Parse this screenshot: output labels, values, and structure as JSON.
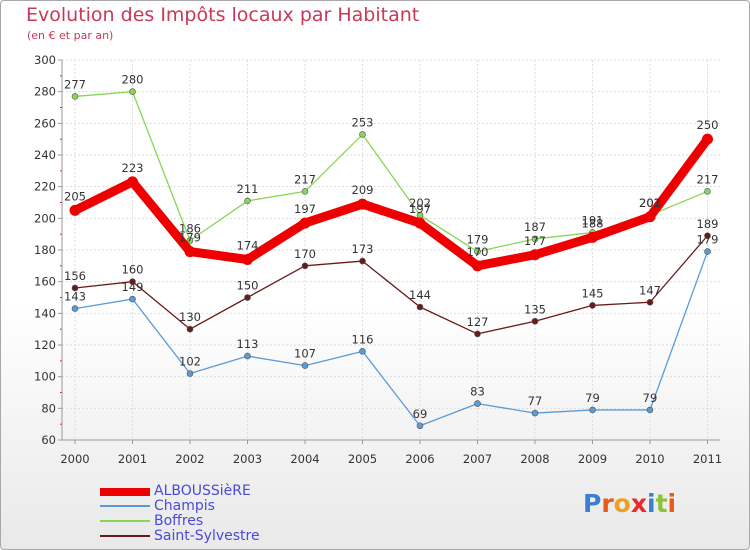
{
  "chart_data": {
    "type": "line",
    "title": "Evolution des Impôts locaux par Habitant",
    "subtitle": "(en € et par an)",
    "xlabel": "",
    "ylabel": "",
    "ylim": [
      60,
      300
    ],
    "yticks": [
      60,
      80,
      100,
      120,
      140,
      160,
      180,
      200,
      220,
      240,
      260,
      280,
      300
    ],
    "grid": true,
    "categories": [
      "2000",
      "2001",
      "2002",
      "2003",
      "2004",
      "2005",
      "2006",
      "2007",
      "2008",
      "2009",
      "2010",
      "2011"
    ],
    "series": [
      {
        "name": "ALBOUSSièRE",
        "color": "#ee0000",
        "values": [
          205,
          223,
          179,
          174,
          197,
          209,
          197,
          170,
          177,
          188,
          201,
          250
        ]
      },
      {
        "name": "Champis",
        "color": "#5b9bd5",
        "values": [
          143,
          149,
          102,
          113,
          107,
          116,
          69,
          83,
          77,
          79,
          79,
          179
        ]
      },
      {
        "name": "Boffres",
        "color": "#88d655",
        "values": [
          277,
          280,
          186,
          211,
          217,
          253,
          202,
          179,
          187,
          191,
          202,
          217
        ]
      },
      {
        "name": "Saint-Sylvestre",
        "color": "#6b1a1a",
        "values": [
          156,
          160,
          130,
          150,
          170,
          173,
          144,
          127,
          135,
          145,
          147,
          189
        ]
      }
    ],
    "legend_position": "bottom-left"
  },
  "logo": {
    "letters": [
      "P",
      "r",
      "o",
      "x",
      "i",
      "t",
      "i"
    ],
    "colors": [
      "#3a7fd0",
      "#e85a1a",
      "#f0a020",
      "#e82a2a",
      "#3a7fd0",
      "#8ac43a",
      "#e85a1a"
    ]
  }
}
